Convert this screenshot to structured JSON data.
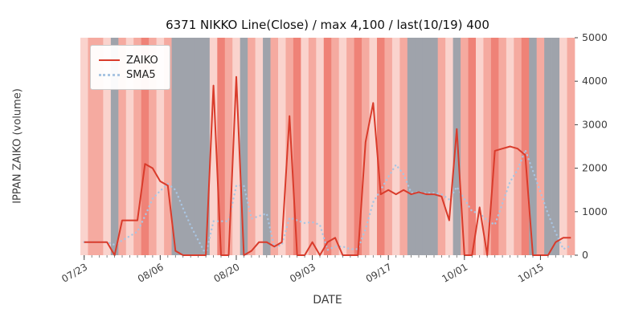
{
  "chart": {
    "title": "6371 NIKKO Line(Close) / max 4,100 / last(10/19) 400",
    "xlabel": "DATE",
    "ylabel": "IPPAN ZAIKO (volume)",
    "legend": {
      "zaiko": "ZAIKO",
      "sma5": "SMA5"
    }
  },
  "chart_data": {
    "type": "line",
    "title": "6371 NIKKO Line(Close) / max 4,100 / last(10/19) 400",
    "xlabel": "DATE",
    "ylabel": "IPPAN ZAIKO (volume)",
    "ylim": [
      0,
      5000
    ],
    "yticks": [
      0,
      1000,
      2000,
      3000,
      4000,
      5000
    ],
    "yaxis_side": "right",
    "grid": false,
    "legend_position": "upper left",
    "max_value": 4100,
    "last_date": "10/19",
    "last_value": 400,
    "xticks": [
      {
        "index": 0,
        "label": "07/23"
      },
      {
        "index": 10,
        "label": "08/06"
      },
      {
        "index": 20,
        "label": "08/20"
      },
      {
        "index": 30,
        "label": "09/03"
      },
      {
        "index": 40,
        "label": "09/17"
      },
      {
        "index": 50,
        "label": "10/01"
      },
      {
        "index": 60,
        "label": "10/15"
      }
    ],
    "dates": [
      "07/23",
      "07/24",
      "07/25",
      "07/26",
      "07/27",
      "07/30",
      "07/31",
      "08/01",
      "08/02",
      "08/03",
      "08/06",
      "08/07",
      "08/08",
      "08/09",
      "08/10",
      "08/13",
      "08/14",
      "08/15",
      "08/16",
      "08/17",
      "08/20",
      "08/21",
      "08/22",
      "08/23",
      "08/24",
      "08/27",
      "08/28",
      "08/29",
      "08/30",
      "08/31",
      "09/03",
      "09/04",
      "09/05",
      "09/06",
      "09/07",
      "09/10",
      "09/11",
      "09/12",
      "09/13",
      "09/14",
      "09/17",
      "09/18",
      "09/19",
      "09/20",
      "09/21",
      "09/24",
      "09/25",
      "09/26",
      "09/27",
      "09/28",
      "10/01",
      "10/02",
      "10/03",
      "10/04",
      "10/05",
      "10/08",
      "10/09",
      "10/10",
      "10/11",
      "10/12",
      "10/15",
      "10/16",
      "10/17",
      "10/18",
      "10/19"
    ],
    "series": [
      {
        "name": "ZAIKO",
        "color": "#d93b2b",
        "style": "solid",
        "values": [
          300,
          300,
          300,
          300,
          0,
          800,
          800,
          800,
          2100,
          2000,
          1700,
          1600,
          100,
          0,
          0,
          0,
          0,
          3900,
          0,
          0,
          4100,
          0,
          100,
          300,
          300,
          200,
          300,
          3200,
          0,
          0,
          300,
          0,
          300,
          400,
          0,
          0,
          0,
          2600,
          3500,
          1400,
          1500,
          1400,
          1500,
          1400,
          1450,
          1400,
          1400,
          1350,
          800,
          2900,
          0,
          0,
          1100,
          0,
          2400,
          2450,
          2500,
          2450,
          2300,
          0,
          0,
          0,
          300,
          400,
          400
        ]
      },
      {
        "name": "SMA5",
        "color": "#a9c5e2",
        "style": "dotted",
        "derived": "5-day moving average of ZAIKO",
        "window": 5
      }
    ],
    "sma_window": 5,
    "band_palette": {
      "s": "#ef8277",
      "m": "#f5aaa0",
      "l": "#fad3cd",
      "g": "#9fa3ab"
    },
    "bands": [
      "l",
      "m",
      "m",
      "l",
      "g",
      "m",
      "l",
      "m",
      "s",
      "m",
      "l",
      "m",
      "g",
      "g",
      "g",
      "g",
      "g",
      "l",
      "s",
      "m",
      "l",
      "g",
      "m",
      "l",
      "g",
      "m",
      "l",
      "m",
      "s",
      "l",
      "m",
      "l",
      "s",
      "m",
      "l",
      "m",
      "s",
      "m",
      "l",
      "s",
      "m",
      "l",
      "m",
      "g",
      "g",
      "g",
      "g",
      "m",
      "l",
      "g",
      "m",
      "s",
      "l",
      "m",
      "s",
      "m",
      "l",
      "m",
      "s",
      "g",
      "m",
      "g",
      "g",
      "l",
      "m"
    ]
  }
}
